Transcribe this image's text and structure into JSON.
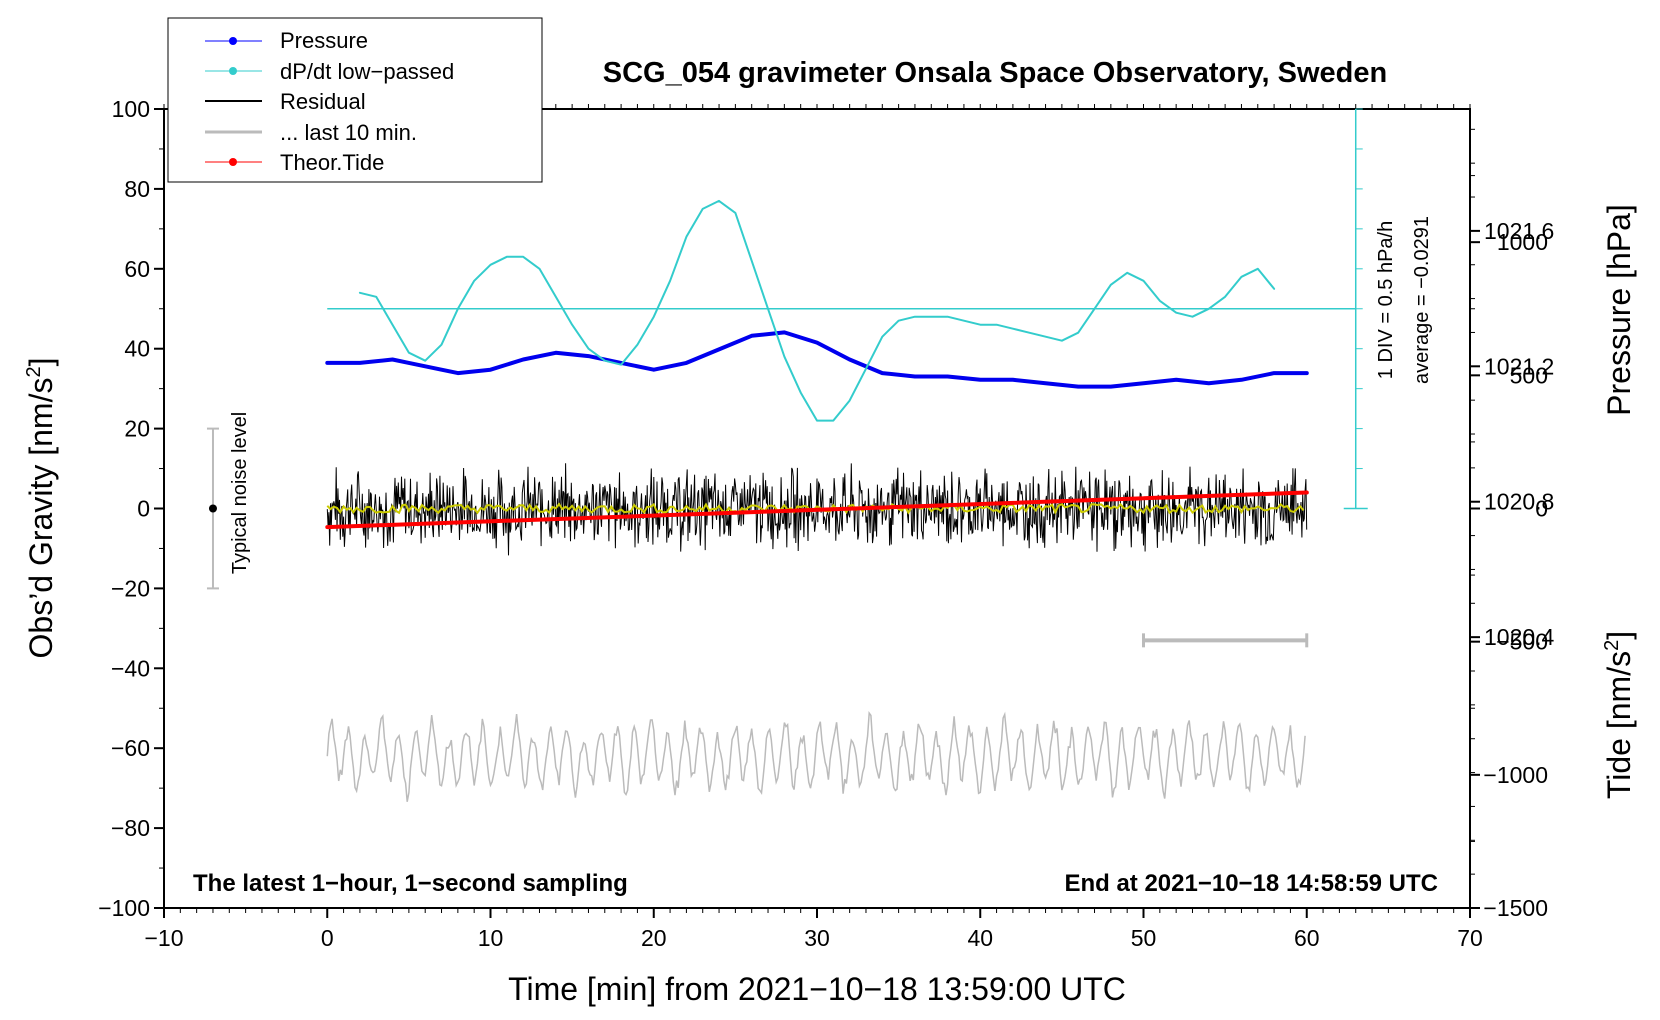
{
  "chart_data": {
    "type": "line",
    "title": "SCG_054 gravimeter Onsala Space Observatory, Sweden",
    "xlabel": "Time [min] from 2021−10−18 13:59:00 UTC",
    "ylabel_left_main": "Obs’d Gravity [nm/s",
    "ylabel_left_sup": "2",
    "ylabel_left_end": "]",
    "ylabel_right_pressure": "Pressure [hPa]",
    "ylabel_right_tide_main": "Tide [nm/s",
    "ylabel_right_tide_sup": "2",
    "ylabel_right_tide_end": "]",
    "xlim": [
      -10,
      70
    ],
    "ylim": [
      -100,
      100
    ],
    "pressure_lim": [
      1019.6,
      1021.96
    ],
    "tide_lim": [
      -1500,
      1500
    ],
    "x_ticks": [
      "−10",
      "0",
      "10",
      "20",
      "30",
      "40",
      "50",
      "60",
      "70"
    ],
    "x_tick_values": [
      -10,
      0,
      10,
      20,
      30,
      40,
      50,
      60,
      70
    ],
    "y_ticks": [
      "100",
      "80",
      "60",
      "40",
      "20",
      "0",
      "−20",
      "−40",
      "−60",
      "−80",
      "−100"
    ],
    "y_tick_values": [
      100,
      80,
      60,
      40,
      20,
      0,
      -20,
      -40,
      -60,
      -80,
      -100
    ],
    "pressure_ticks": [
      "1021.6",
      "1021.2",
      "1020.8",
      "1020.4"
    ],
    "pressure_tick_values": [
      1021.6,
      1021.2,
      1020.8,
      1020.4
    ],
    "tide_ticks": [
      "1000",
      "500",
      "0",
      "−500",
      "−1000",
      "−1500"
    ],
    "tide_tick_values": [
      1000,
      500,
      0,
      -500,
      -1000,
      -1500
    ],
    "legend": {
      "placement": "top-left",
      "entries": [
        {
          "label": "Pressure",
          "color": "#0000ff",
          "marker": true
        },
        {
          "label": "dP/dt low−passed",
          "color": "#33cccc",
          "marker": true
        },
        {
          "label": "Residual",
          "color": "#000000",
          "marker": false
        },
        {
          "label": "... last 10 min.",
          "color": "#bbbbbb",
          "marker": false
        },
        {
          "label": "Theor.Tide",
          "color": "#ff0000",
          "marker": true
        }
      ]
    },
    "annotations": {
      "bottom_left": "The latest 1−hour, 1−second sampling",
      "bottom_right": "End at 2021−10−18 14:58:59 UTC",
      "noise_label": "Typical noise level",
      "dpdt_scale": "1 DIV = 0.5 hPa/h",
      "dpdt_average": "average = −0.0291"
    },
    "noise_bar": {
      "x": -7,
      "center": 0,
      "range": [
        -20,
        20
      ]
    },
    "dpdt_axis": {
      "x": 63,
      "y_zero": 50,
      "y_top": 100,
      "y_bottom": 0
    },
    "last10_bar": {
      "x_range": [
        50,
        60
      ],
      "y": -33
    },
    "series": [
      {
        "name": "Pressure",
        "axis": "pressure",
        "color": "#0000ee",
        "x": [
          0,
          2,
          4,
          5,
          7,
          8,
          10,
          12,
          14,
          16,
          18,
          20,
          22,
          24,
          26,
          28,
          30,
          32,
          34,
          36,
          38,
          40,
          42,
          44,
          46,
          48,
          50,
          52,
          54,
          56,
          58,
          60
        ],
        "y": [
          1021.21,
          1021.21,
          1021.22,
          1021.21,
          1021.19,
          1021.18,
          1021.19,
          1021.22,
          1021.24,
          1021.23,
          1021.21,
          1021.19,
          1021.21,
          1021.25,
          1021.29,
          1021.3,
          1021.27,
          1021.22,
          1021.18,
          1021.17,
          1021.17,
          1021.16,
          1021.16,
          1021.15,
          1021.14,
          1021.14,
          1021.15,
          1021.16,
          1021.15,
          1021.16,
          1021.18,
          1021.18
        ]
      },
      {
        "name": "dP/dt low−passed",
        "axis": "dpdt",
        "color": "#33cccc",
        "baseline": 50,
        "x": [
          2,
          3,
          4,
          5,
          6,
          7,
          8,
          9,
          10,
          11,
          12,
          13,
          14,
          15,
          16,
          17,
          18,
          19,
          20,
          21,
          22,
          23,
          24,
          25,
          26,
          27,
          28,
          29,
          30,
          31,
          32,
          33,
          34,
          35,
          36,
          37,
          38,
          39,
          40,
          41,
          42,
          43,
          44,
          45,
          46,
          47,
          48,
          49,
          50,
          51,
          52,
          53,
          54,
          55,
          56,
          57,
          58
        ],
        "y": [
          54,
          53,
          46,
          39,
          37,
          41,
          50,
          57,
          61,
          63,
          63,
          60,
          53,
          46,
          40,
          37,
          36,
          41,
          48,
          57,
          68,
          75,
          77,
          74,
          62,
          50,
          38,
          29,
          22,
          22,
          27,
          35,
          43,
          47,
          48,
          48,
          48,
          47,
          46,
          46,
          45,
          44,
          43,
          42,
          44,
          50,
          56,
          59,
          57,
          52,
          49,
          48,
          50,
          53,
          58,
          60,
          55
        ]
      },
      {
        "name": "Theor.Tide",
        "axis": "tide",
        "color": "#ff0000",
        "x": [
          0,
          60
        ],
        "y": [
          -70,
          60
        ]
      }
    ],
    "residual_summary": {
      "center": 0,
      "amplitude": 10,
      "x_range": [
        0,
        60
      ]
    },
    "last10_summary": {
      "center": -62,
      "amplitude": 8,
      "x_range": [
        0,
        60
      ]
    }
  }
}
